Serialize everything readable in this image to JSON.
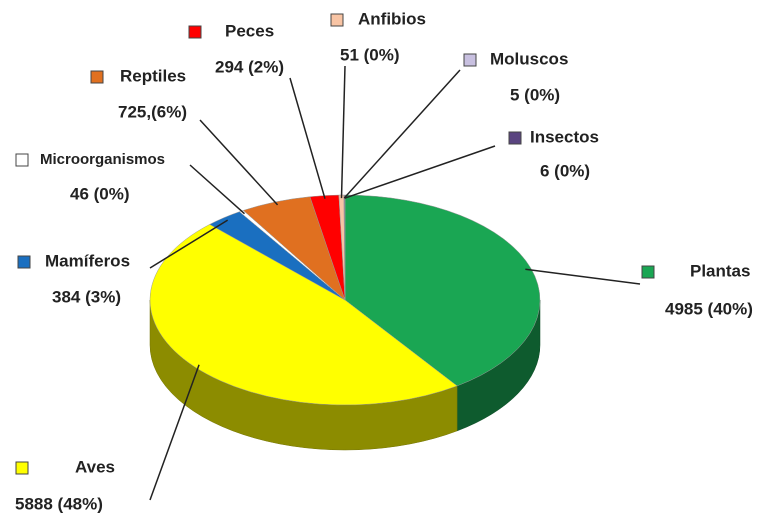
{
  "chart_data": {
    "type": "pie",
    "categories": [
      "Plantas",
      "Aves",
      "Mamíferos",
      "Microorganismos",
      "Reptiles",
      "Peces",
      "Anfibios",
      "Moluscos",
      "Insectos"
    ],
    "values": [
      4985,
      5888,
      384,
      46,
      725,
      294,
      51,
      5,
      6
    ],
    "value_labels": [
      "4985 (40%)",
      "5888 (48%)",
      "384 (3%)",
      "46 (0%)",
      "725,(6%)",
      "294 (2%)",
      "51 (0%)",
      "5 (0%)",
      "6 (0%)"
    ],
    "colors": [
      "#1aa653",
      "#ffff00",
      "#1a6fc0",
      "#ffffff",
      "#e07020",
      "#ff0000",
      "#f8c4a4",
      "#c8c0e0",
      "#5a4480"
    ]
  }
}
